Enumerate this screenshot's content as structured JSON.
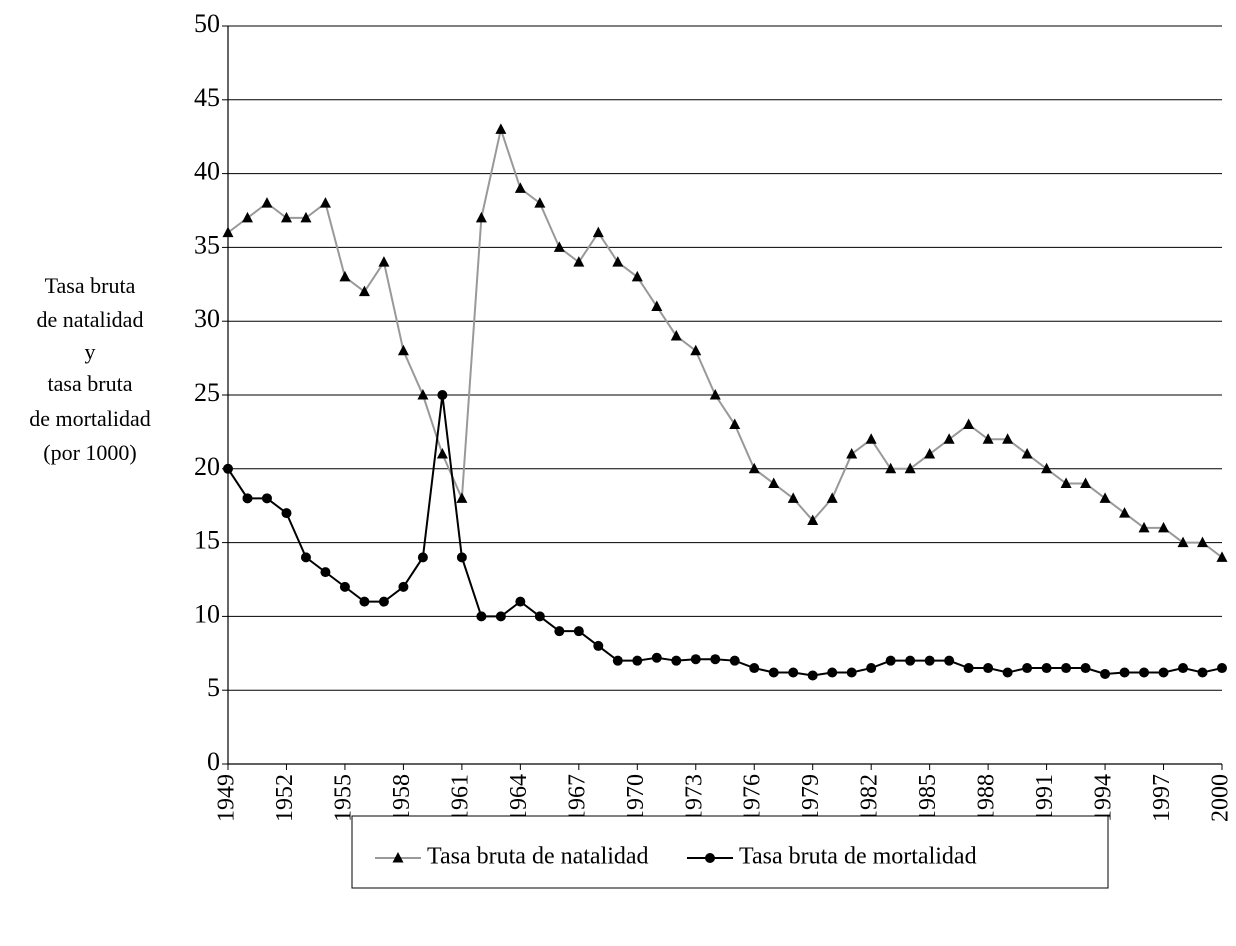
{
  "chart_data": {
    "type": "line",
    "y_label": [
      "Tasa bruta",
      "de natalidad",
      "y",
      "tasa bruta",
      "de mortalidad",
      "(por 1000)"
    ],
    "x": [
      1949,
      1950,
      1951,
      1952,
      1953,
      1954,
      1955,
      1956,
      1957,
      1958,
      1959,
      1960,
      1961,
      1962,
      1963,
      1964,
      1965,
      1966,
      1967,
      1968,
      1969,
      1970,
      1971,
      1972,
      1973,
      1974,
      1975,
      1976,
      1977,
      1978,
      1979,
      1980,
      1981,
      1982,
      1983,
      1984,
      1985,
      1986,
      1987,
      1988,
      1989,
      1990,
      1991,
      1992,
      1993,
      1994,
      1995,
      1996,
      1997,
      1998,
      1999,
      2000
    ],
    "xlim": [
      1949,
      2000
    ],
    "xticks": [
      1949,
      1952,
      1955,
      1958,
      1961,
      1964,
      1967,
      1970,
      1973,
      1976,
      1979,
      1982,
      1985,
      1988,
      1991,
      1994,
      1997,
      2000
    ],
    "ylim": [
      0,
      50
    ],
    "yticks": [
      0,
      5,
      10,
      15,
      20,
      25,
      30,
      35,
      40,
      45,
      50
    ],
    "grid": true,
    "legend": "bottom",
    "series": [
      {
        "name": "Tasa bruta de natalidad",
        "color": "#999999",
        "marker": "triangle",
        "marker_color": "#000000",
        "values": [
          36,
          37,
          38,
          37,
          37,
          38,
          33,
          32,
          34,
          28,
          25,
          21,
          18,
          37,
          43,
          39,
          38,
          35,
          34,
          36,
          34,
          33,
          31,
          29,
          28,
          25,
          23,
          20,
          19,
          18,
          16.5,
          18,
          21,
          22,
          20,
          20,
          21,
          22,
          23,
          22,
          22,
          21,
          20,
          19,
          19,
          18,
          17,
          16,
          16,
          15,
          15,
          14
        ]
      },
      {
        "name": "Tasa bruta de mortalidad",
        "color": "#000000",
        "marker": "circle",
        "marker_color": "#000000",
        "values": [
          20,
          18,
          18,
          17,
          14,
          13,
          12,
          11,
          11,
          12,
          14,
          25,
          14,
          10,
          10,
          11,
          10,
          9,
          9,
          8,
          7,
          7,
          7.2,
          7,
          7.1,
          7.1,
          7,
          6.5,
          6.2,
          6.2,
          6,
          6.2,
          6.2,
          6.5,
          7,
          7,
          7,
          7,
          6.5,
          6.5,
          6.2,
          6.5,
          6.5,
          6.5,
          6.5,
          6.1,
          6.2,
          6.2,
          6.2,
          6.5,
          6.2,
          6.5
        ]
      }
    ]
  }
}
